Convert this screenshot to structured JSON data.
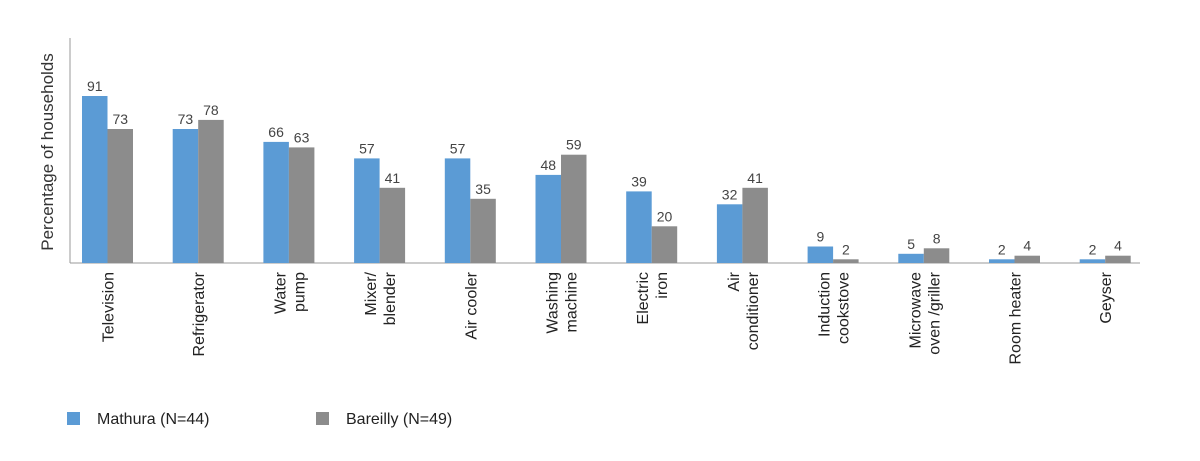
{
  "chart_data": {
    "type": "bar",
    "title": "",
    "xlabel": "",
    "ylabel": "Percentage of households",
    "ylim": [
      0,
      100
    ],
    "grid": false,
    "legend_position": "bottom-left",
    "categories": [
      [
        "Television"
      ],
      [
        "Refrigerator"
      ],
      [
        "Water",
        "pump"
      ],
      [
        "Mixer/",
        "blender"
      ],
      [
        "Air cooler"
      ],
      [
        "Washing",
        "machine"
      ],
      [
        "Electric",
        "iron"
      ],
      [
        "Air",
        "conditioner"
      ],
      [
        "Induction",
        "cookstove"
      ],
      [
        "Microwave",
        "oven /griller"
      ],
      [
        "Room heater"
      ],
      [
        "Geyser"
      ]
    ],
    "series": [
      {
        "name": "Mathura (N=44)",
        "color": "#5b9bd5",
        "values": [
          91,
          73,
          66,
          57,
          57,
          48,
          39,
          32,
          9,
          5,
          2,
          2
        ]
      },
      {
        "name": "Bareilly (N=49)",
        "color": "#8c8c8c",
        "values": [
          73,
          78,
          63,
          41,
          35,
          59,
          20,
          41,
          2,
          8,
          4,
          4
        ]
      }
    ]
  }
}
